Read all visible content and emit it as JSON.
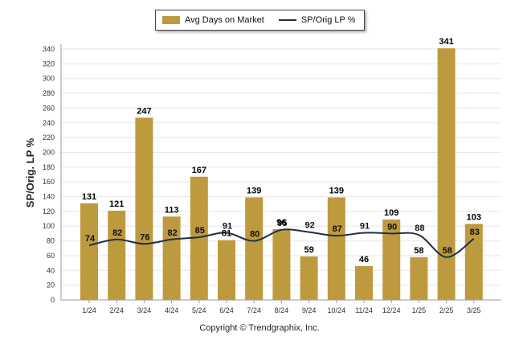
{
  "legend": {
    "bar_label": "Avg Days on Market",
    "line_label": "SP/Orig LP %"
  },
  "footer": {
    "copyright": "Copyright © Trendgraphix, Inc."
  },
  "colors": {
    "bar": "#BE9A3F",
    "line": "#1F2F45",
    "grid": "#E6E6E6"
  },
  "chart_data": {
    "type": "bar",
    "categories": [
      "1/24",
      "2/24",
      "3/24",
      "4/24",
      "5/24",
      "6/24",
      "7/24",
      "8/24",
      "9/24",
      "10/24",
      "11/24",
      "12/24",
      "1/25",
      "2/25",
      "3/25"
    ],
    "series": [
      {
        "name": "Avg Days on Market",
        "type": "bar",
        "values": [
          131,
          121,
          247,
          113,
          167,
          81,
          139,
          96,
          59,
          139,
          46,
          109,
          58,
          341,
          103
        ]
      },
      {
        "name": "SP/Orig LP %",
        "type": "line",
        "values": [
          74,
          82,
          76,
          82,
          85,
          91,
          80,
          95,
          92,
          87,
          91,
          90,
          88,
          58,
          83
        ]
      }
    ],
    "ylabel": "SP/Orig. LP %",
    "ylim": [
      0,
      340
    ],
    "yticks": [
      0,
      20,
      40,
      60,
      80,
      100,
      120,
      140,
      160,
      180,
      200,
      220,
      240,
      260,
      280,
      300,
      320,
      340
    ],
    "grid": true,
    "legend_position": "top"
  }
}
